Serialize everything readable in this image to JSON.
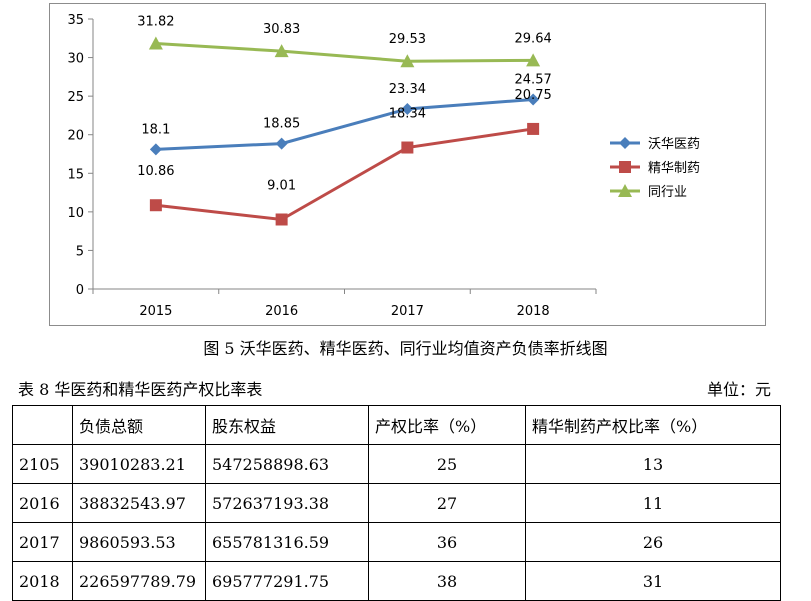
{
  "chart_data": {
    "type": "line",
    "categories": [
      "2015",
      "2016",
      "2017",
      "2018"
    ],
    "ylim": [
      0,
      35
    ],
    "yticks": [
      0,
      5,
      10,
      15,
      20,
      25,
      30,
      35
    ],
    "grid": false,
    "legend": "right",
    "series": [
      {
        "name": "沃华医药",
        "values": [
          18.1,
          18.85,
          23.34,
          24.57
        ],
        "labels": [
          "18.1",
          "18.85",
          "23.34",
          "24.57"
        ],
        "color": "#4a7ebb",
        "marker": "diamond"
      },
      {
        "name": "精华制药",
        "values": [
          10.86,
          9.01,
          18.34,
          20.75
        ],
        "labels": [
          "10.86",
          "9.01",
          "18.34",
          "20.75"
        ],
        "color": "#be4b48",
        "marker": "square"
      },
      {
        "name": "同行业",
        "values": [
          31.82,
          30.83,
          29.53,
          29.64
        ],
        "labels": [
          "31.82",
          "30.83",
          "29.53",
          "29.64"
        ],
        "color": "#98b954",
        "marker": "triangle"
      }
    ]
  },
  "caption": "图 5 沃华医药、精华医药、同行业均值资产负债率折线图",
  "table_title": "表 8 华医药和精华医药产权比率表",
  "unit_label": "单位：元",
  "table": {
    "headers": [
      "",
      "负债总额",
      "股东权益",
      "产权比率（%）",
      "精华制药产权比率（%）"
    ],
    "rows": [
      [
        "2105",
        "39010283.21",
        "547258898.63",
        "25",
        "13"
      ],
      [
        "2016",
        "38832543.97",
        "572637193.38",
        "27",
        "11"
      ],
      [
        "2017",
        "9860593.53",
        "655781316.59",
        "36",
        "26"
      ],
      [
        "2018",
        "226597789.79",
        "695777291.75",
        "38",
        "31"
      ]
    ]
  }
}
